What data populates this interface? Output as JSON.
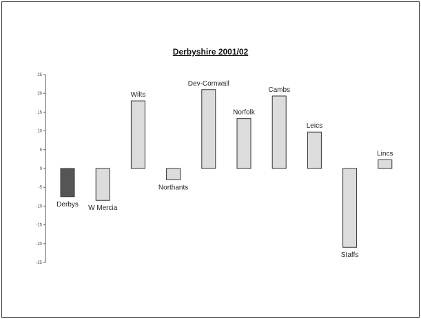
{
  "chart_data": {
    "type": "bar",
    "title": "Derbyshire 2001/02",
    "xlabel": "",
    "ylabel": "",
    "ylim": [
      -25,
      25
    ],
    "yticks": [
      "25",
      "20",
      "15",
      "10",
      "5",
      "0",
      "-5",
      "-10",
      "-15",
      "-20",
      "-25"
    ],
    "ytick_values": [
      25,
      20,
      15,
      10,
      5,
      0,
      -5,
      -10,
      -15,
      -20,
      -25
    ],
    "grid": false,
    "categories": [
      "Derbys",
      "W Mercia",
      "Wilts",
      "Northants",
      "Dev-Cornwall",
      "Norfolk",
      "Cambs",
      "Leics",
      "Staffs",
      "Lincs"
    ],
    "values": [
      -7.5,
      -8.5,
      18,
      -3,
      21,
      13.3,
      19.3,
      9.7,
      -21,
      2.3
    ],
    "colors": [
      "#555555",
      "#dcdcdc",
      "#dcdcdc",
      "#dcdcdc",
      "#dcdcdc",
      "#dcdcdc",
      "#dcdcdc",
      "#dcdcdc",
      "#dcdcdc",
      "#dcdcdc"
    ],
    "highlight_color": "#555555",
    "bar_color": "#dcdcdc"
  }
}
